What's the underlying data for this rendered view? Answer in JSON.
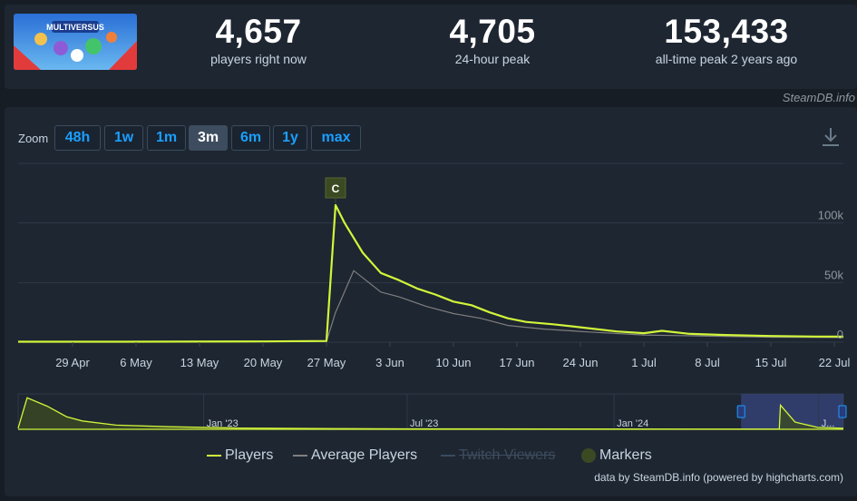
{
  "stats": {
    "players_now": {
      "value": "4,657",
      "label": "players right now"
    },
    "peak_24h": {
      "value": "4,705",
      "label": "24-hour peak"
    },
    "all_time": {
      "value": "153,433",
      "label": "all-time peak 2 years ago"
    }
  },
  "game_image_alt": "MULTIVERSUS",
  "source_label": "SteamDB.info",
  "zoom": {
    "label": "Zoom",
    "buttons": [
      "48h",
      "1w",
      "1m",
      "3m",
      "6m",
      "1y",
      "max"
    ],
    "active": "3m"
  },
  "chart_data": {
    "type": "line",
    "main": {
      "x_ticks": [
        "29 Apr",
        "6 May",
        "13 May",
        "20 May",
        "27 May",
        "3 Jun",
        "10 Jun",
        "17 Jun",
        "24 Jun",
        "1 Jul",
        "8 Jul",
        "15 Jul",
        "22 Jul"
      ],
      "y_ticks": [
        "0",
        "50k",
        "100k"
      ],
      "ylim": [
        0,
        150000
      ],
      "grid": true,
      "x_start": "2024-04-23",
      "x_end": "2024-07-23",
      "marker": {
        "label": "C",
        "date": "2024-05-28"
      },
      "series": [
        {
          "name": "Players",
          "color": "#d1f53a",
          "points": [
            [
              "2024-04-23",
              400
            ],
            [
              "2024-05-05",
              400
            ],
            [
              "2024-05-20",
              600
            ],
            [
              "2024-05-27",
              1000
            ],
            [
              "2024-05-28",
              115000
            ],
            [
              "2024-05-29",
              100000
            ],
            [
              "2024-05-31",
              75000
            ],
            [
              "2024-06-02",
              58000
            ],
            [
              "2024-06-04",
              52000
            ],
            [
              "2024-06-06",
              45000
            ],
            [
              "2024-06-08",
              40000
            ],
            [
              "2024-06-10",
              34000
            ],
            [
              "2024-06-12",
              31000
            ],
            [
              "2024-06-14",
              25000
            ],
            [
              "2024-06-16",
              20000
            ],
            [
              "2024-06-18",
              17000
            ],
            [
              "2024-06-21",
              15000
            ],
            [
              "2024-06-24",
              12500
            ],
            [
              "2024-06-28",
              9000
            ],
            [
              "2024-07-01",
              7500
            ],
            [
              "2024-07-03",
              9500
            ],
            [
              "2024-07-06",
              7000
            ],
            [
              "2024-07-10",
              6000
            ],
            [
              "2024-07-15",
              5200
            ],
            [
              "2024-07-20",
              4700
            ],
            [
              "2024-07-23",
              4657
            ]
          ]
        },
        {
          "name": "Average Players",
          "color": "#7f7f7f",
          "points": [
            [
              "2024-04-23",
              300
            ],
            [
              "2024-05-20",
              400
            ],
            [
              "2024-05-27",
              700
            ],
            [
              "2024-05-28",
              25000
            ],
            [
              "2024-05-30",
              60000
            ],
            [
              "2024-06-02",
              42000
            ],
            [
              "2024-06-04",
              38000
            ],
            [
              "2024-06-07",
              30000
            ],
            [
              "2024-06-10",
              24000
            ],
            [
              "2024-06-13",
              20000
            ],
            [
              "2024-06-16",
              14000
            ],
            [
              "2024-06-20",
              11000
            ],
            [
              "2024-06-25",
              8500
            ],
            [
              "2024-07-01",
              6000
            ],
            [
              "2024-07-05",
              5500
            ],
            [
              "2024-07-10",
              4800
            ],
            [
              "2024-07-15",
              4200
            ],
            [
              "2024-07-23",
              3900
            ]
          ]
        }
      ]
    },
    "navigator": {
      "x_ticks": [
        "Jan '23",
        "Jul '23",
        "Jan '24",
        "J..."
      ],
      "series": [
        {
          "name": "Players",
          "points": [
            [
              "2022-07-20",
              5000
            ],
            [
              "2022-07-28",
              150000
            ],
            [
              "2022-08-15",
              110000
            ],
            [
              "2022-09-01",
              60000
            ],
            [
              "2022-09-15",
              40000
            ],
            [
              "2022-10-15",
              20000
            ],
            [
              "2022-12-01",
              12000
            ],
            [
              "2023-02-01",
              6000
            ],
            [
              "2023-05-01",
              3000
            ],
            [
              "2023-07-01",
              2000
            ],
            [
              "2024-05-27",
              900
            ],
            [
              "2024-05-28",
              115000
            ],
            [
              "2024-06-10",
              34000
            ],
            [
              "2024-06-30",
              9000
            ],
            [
              "2024-07-23",
              4657
            ]
          ]
        }
      ]
    },
    "legend": [
      {
        "name": "Players",
        "color": "#d1f53a",
        "enabled": true
      },
      {
        "name": "Average Players",
        "color": "#7f7f7f",
        "enabled": true
      },
      {
        "name": "Twitch Viewers",
        "color": "#3a4b5e",
        "enabled": false
      },
      {
        "name": "Markers",
        "color": "#3b4a23",
        "enabled": true
      }
    ],
    "credits": "data by SteamDB.info (powered by highcharts.com)"
  }
}
